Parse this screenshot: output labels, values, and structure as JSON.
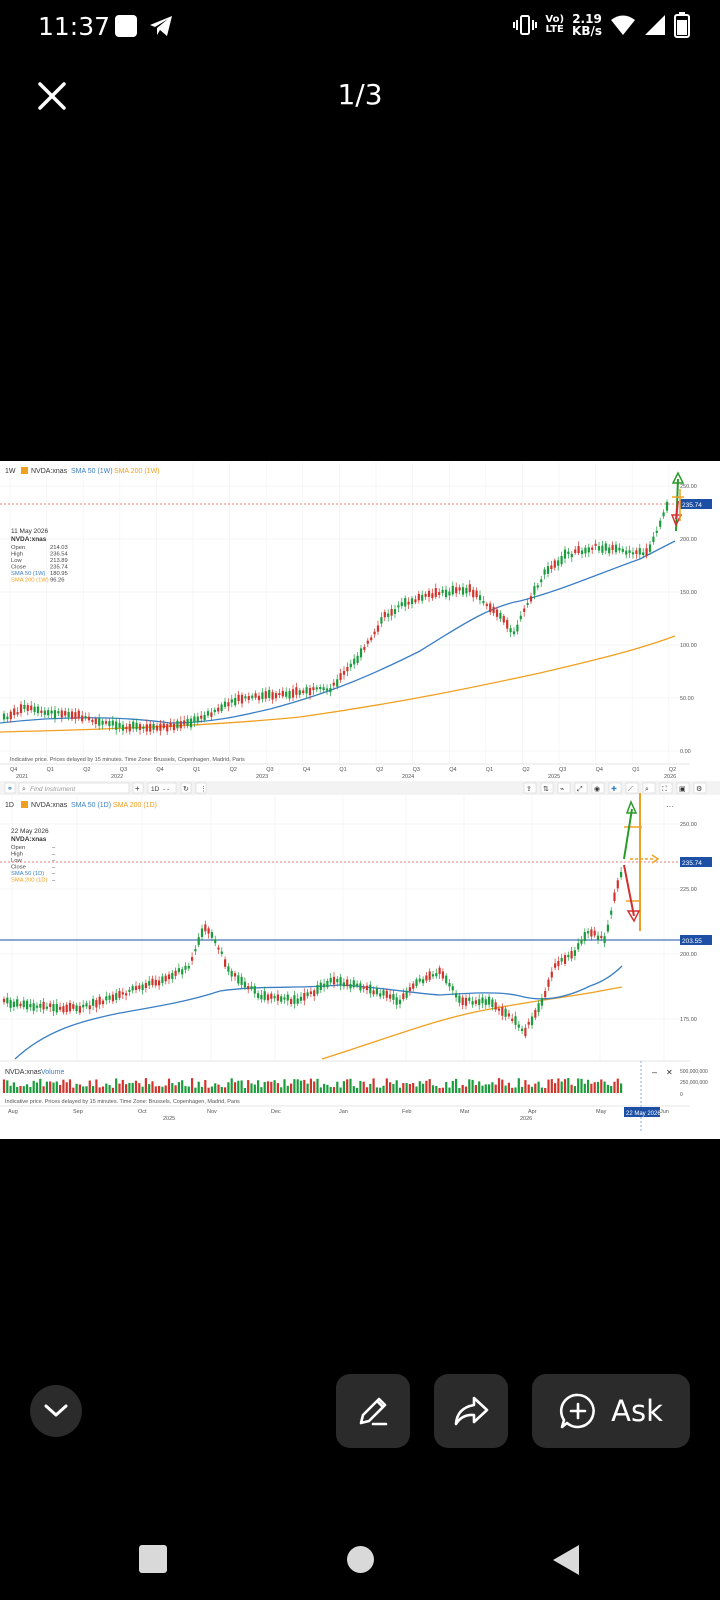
{
  "status_bar": {
    "time": "11:37",
    "network_label": "LTE",
    "volte_label": "Vo)",
    "speed_value": "2.19",
    "speed_unit": "KB/s"
  },
  "viewer": {
    "counter": "1/3"
  },
  "top_chart": {
    "interval": "1W",
    "symbol": "NVDA:xnas",
    "sma50_label": "SMA 50 (1W)",
    "sma200_label": "SMA 200 (1W)",
    "info": {
      "date": "11 May 2026",
      "symbol": "NVDA:xnas",
      "rows": [
        {
          "label": "Open",
          "value": "214.03"
        },
        {
          "label": "High",
          "value": "236.54"
        },
        {
          "label": "Low",
          "value": "213.89"
        },
        {
          "label": "Close",
          "value": "235.74"
        },
        {
          "label": "SMA 50 (1W)",
          "value": "180.95"
        },
        {
          "label": "SMA 200 (1W)",
          "value": "96.26"
        }
      ]
    },
    "y_ticks": [
      "250.00",
      "200.00",
      "150.00",
      "100.00",
      "50.00",
      "0.00"
    ],
    "last_price": "235.74",
    "footer_note": "Indicative price. Prices delayed by 15 minutes.  Time Zone: Brussels, Copenhagen, Madrid, Paris",
    "quarters": [
      "Q4",
      "Q1",
      "Q2",
      "Q3",
      "Q4",
      "Q1",
      "Q2",
      "Q3",
      "Q4",
      "Q1",
      "Q2",
      "Q3",
      "Q4",
      "Q1",
      "Q2",
      "Q3",
      "Q4",
      "Q1",
      "Q2"
    ],
    "years": [
      "2021",
      "2022",
      "2023",
      "2024",
      "2025",
      "2026"
    ]
  },
  "toolbar": {
    "search_placeholder": "Find Instrument",
    "add_label": "+",
    "interval_label": "1D",
    "style_label": "- -"
  },
  "bottom_chart": {
    "interval": "1D",
    "symbol": "NVDA:xnas",
    "sma50_label": "SMA 50 (1D)",
    "sma200_label": "SMA 200 (1D)",
    "info": {
      "date": "22 May 2026",
      "symbol": "NVDA:xnas",
      "rows": [
        {
          "label": "Open",
          "value": "–"
        },
        {
          "label": "High",
          "value": "–"
        },
        {
          "label": "Low",
          "value": "–"
        },
        {
          "label": "Close",
          "value": "–"
        },
        {
          "label": "SMA 50 (1D)",
          "value": "–"
        },
        {
          "label": "SMA 200 (1D)",
          "value": "–"
        }
      ]
    },
    "y_ticks": [
      "250.00",
      "225.00",
      "200.00",
      "175.00"
    ],
    "last_price": "235.74",
    "level_price": "203.55",
    "volume_label": "NVDA:xnas",
    "volume_series": "Volume",
    "volume_ticks": [
      "500,000,000",
      "250,000,000",
      "0"
    ],
    "footer_note": "Indicative price. Prices delayed by 15 minutes.  Time Zone: Brussels, Copenhagen, Madrid, Paris",
    "months": [
      "Aug",
      "Sep",
      "Oct",
      "Nov",
      "Dec",
      "Jan",
      "Feb",
      "Mar",
      "Apr",
      "May",
      "Jun"
    ],
    "years": [
      "2025",
      "2026"
    ],
    "crosshair_date": "22 May 2026"
  },
  "actions": {
    "ask_label": "Ask"
  },
  "colors": {
    "up": "#1a9c3c",
    "down": "#d0342c",
    "sma50": "#3b7fc4",
    "sma200": "#f0a020",
    "price_line": "#e05050",
    "level": "#1d4fa5"
  }
}
